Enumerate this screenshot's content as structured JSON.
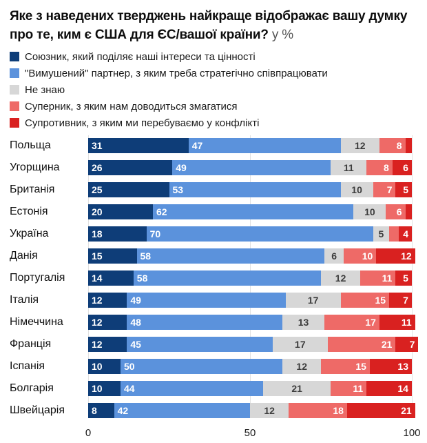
{
  "title": {
    "text": "Яке з наведених тверджень найкраще відображає вашу думку про те, ким є США для ЄС/вашої країни?",
    "suffix": "у %"
  },
  "legend": {
    "items": [
      {
        "label": "Союзник, який поділяє наші інтереси та цінності",
        "color": "#0e3d78"
      },
      {
        "label": "\"Вимушений\" партнер, з яким треба стратегічно співпрацювати",
        "color": "#5b92dc"
      },
      {
        "label": "Не знаю",
        "color": "#d7d7d7"
      },
      {
        "label": "Суперник, з яким нам доводиться змагатися",
        "color": "#ee6a67"
      },
      {
        "label": "Супротивник, з яким ми перебуваємо у конфлікті",
        "color": "#d92120"
      }
    ]
  },
  "chart_data": {
    "type": "bar",
    "orientation": "horizontal",
    "stacked": true,
    "title": "Яке з наведених тверджень найкраще відображає вашу думку про те, ким є США для ЄС/вашої країни? у %",
    "xlim": [
      0,
      100
    ],
    "x_ticks": [
      0,
      50,
      100
    ],
    "grid": true,
    "legend_position": "top",
    "categories": [
      "Польща",
      "Угорщина",
      "Британія",
      "Естонія",
      "Україна",
      "Данія",
      "Португалія",
      "Італія",
      "Німеччина",
      "Франція",
      "Іспанія",
      "Болгарія",
      "Швейцарія"
    ],
    "series": [
      {
        "name": "Союзник, який поділяє наші інтереси та цінності",
        "color": "#0e3d78",
        "label_color": "#ffffff",
        "label_align": "left",
        "values": [
          31,
          26,
          25,
          20,
          18,
          15,
          14,
          12,
          12,
          12,
          10,
          10,
          8
        ]
      },
      {
        "name": "\"Вимушений\" партнер, з яким треба стратегічно співпрацювати",
        "color": "#5b92dc",
        "label_color": "#ffffff",
        "label_align": "left",
        "values": [
          47,
          49,
          53,
          62,
          70,
          58,
          58,
          49,
          48,
          45,
          50,
          44,
          42
        ]
      },
      {
        "name": "Не знаю",
        "color": "#d7d7d7",
        "label_color": "#3c3c3c",
        "label_align": "center",
        "values": [
          12,
          11,
          10,
          10,
          5,
          6,
          12,
          17,
          13,
          17,
          12,
          21,
          12
        ]
      },
      {
        "name": "Суперник, з яким нам доводиться змагатися",
        "color": "#ee6a67",
        "label_color": "#ffffff",
        "label_align": "right",
        "values": [
          8,
          8,
          7,
          6,
          3,
          10,
          11,
          15,
          17,
          21,
          15,
          11,
          18
        ]
      },
      {
        "name": "Супротивник, з яким ми перебуваємо у конфлікті",
        "color": "#d92120",
        "label_color": "#ffffff",
        "label_align": "right",
        "values": [
          2,
          6,
          5,
          2,
          4,
          12,
          5,
          7,
          11,
          7,
          13,
          14,
          21
        ]
      }
    ],
    "min_label_value": 4
  }
}
